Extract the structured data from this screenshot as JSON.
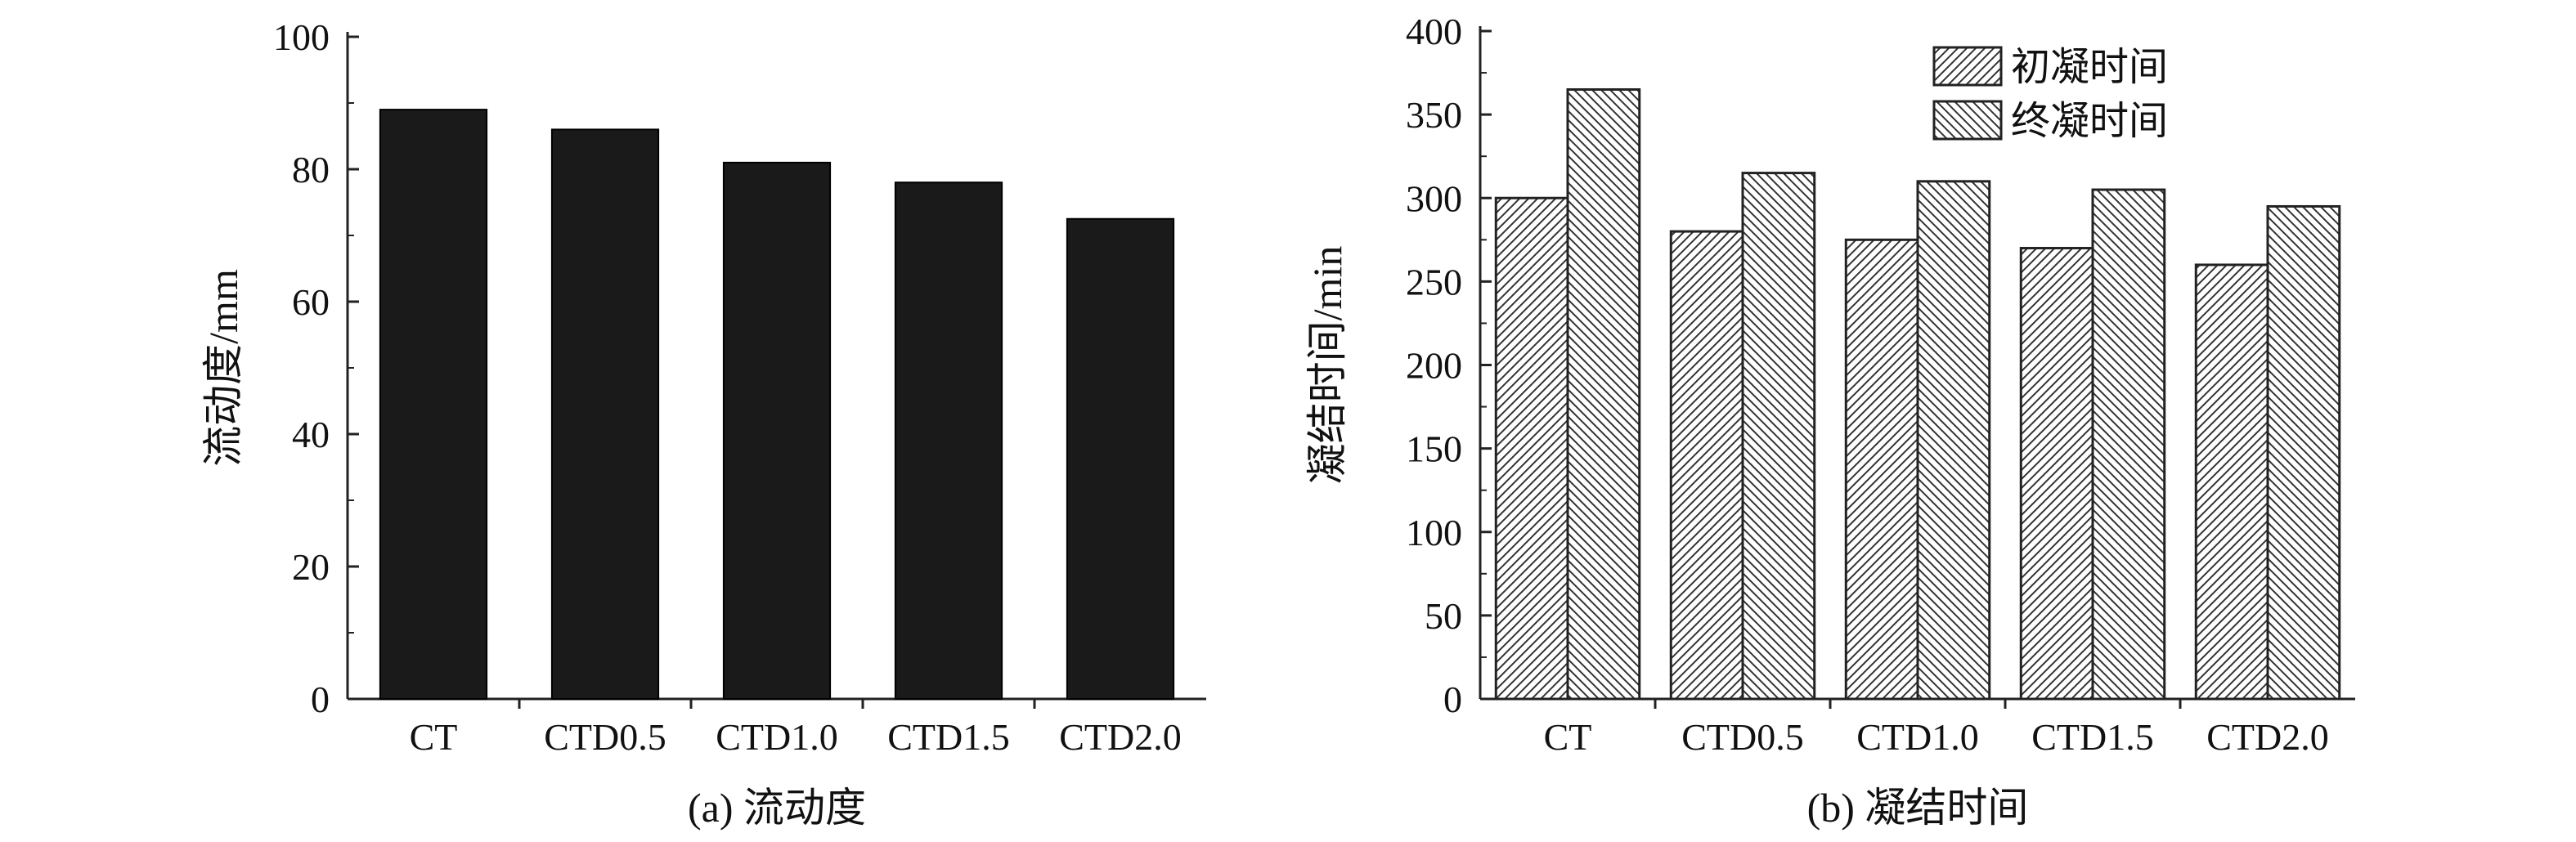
{
  "chart_data": [
    {
      "type": "bar",
      "caption": "(a) 流动度",
      "ylabel": "流动度/mm",
      "xlabel": "",
      "categories": [
        "CT",
        "CTD0.5",
        "CTD1.0",
        "CTD1.5",
        "CTD2.0"
      ],
      "values": [
        89,
        86,
        81,
        78,
        72.5
      ],
      "ylim": [
        0,
        100
      ],
      "yticks": [
        0,
        20,
        40,
        60,
        80,
        100
      ],
      "grid": false,
      "bar_color": "#1a1a1a"
    },
    {
      "type": "bar",
      "caption": "(b) 凝结时间",
      "ylabel": "凝结时间/min",
      "xlabel": "",
      "categories": [
        "CT",
        "CTD0.5",
        "CTD1.0",
        "CTD1.5",
        "CTD2.0"
      ],
      "series": [
        {
          "name": "初凝时间",
          "values": [
            300,
            280,
            275,
            270,
            260
          ],
          "pattern": "hatch-forward"
        },
        {
          "name": "终凝时间",
          "values": [
            365,
            315,
            310,
            305,
            295
          ],
          "pattern": "hatch-back"
        }
      ],
      "ylim": [
        0,
        400
      ],
      "yticks": [
        0,
        50,
        100,
        150,
        200,
        250,
        300,
        350,
        400
      ],
      "grid": false,
      "legend_position": "top-right"
    }
  ]
}
